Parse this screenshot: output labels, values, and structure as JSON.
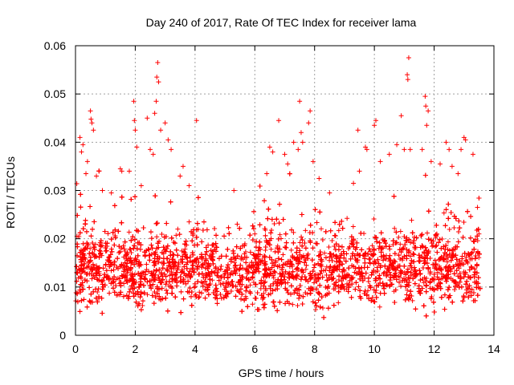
{
  "chart_data": {
    "type": "scatter",
    "title": "Day 240 of 2017, Rate Of TEC Index for receiver lama",
    "xlabel": "GPS time / hours",
    "ylabel": "ROTI / TECUs",
    "xlim": [
      0,
      14
    ],
    "ylim": [
      0,
      0.06
    ],
    "xticks": [
      "0",
      "2",
      "4",
      "6",
      "8",
      "10",
      "12",
      "14"
    ],
    "yticks": [
      "0",
      "0.01",
      "0.02",
      "0.03",
      "0.04",
      "0.05",
      "0.06"
    ],
    "grid": true,
    "marker": "plus",
    "color": "#ff0000",
    "highlight_points": [
      {
        "x": 0.05,
        "y": 0.0205
      },
      {
        "x": 0.15,
        "y": 0.041
      },
      {
        "x": 0.2,
        "y": 0.038
      },
      {
        "x": 0.25,
        "y": 0.0395
      },
      {
        "x": 0.35,
        "y": 0.0335
      },
      {
        "x": 0.4,
        "y": 0.036
      },
      {
        "x": 0.5,
        "y": 0.0465
      },
      {
        "x": 0.52,
        "y": 0.0448
      },
      {
        "x": 0.55,
        "y": 0.044
      },
      {
        "x": 0.6,
        "y": 0.0425
      },
      {
        "x": 0.7,
        "y": 0.033
      },
      {
        "x": 0.9,
        "y": 0.03
      },
      {
        "x": 1.2,
        "y": 0.0295
      },
      {
        "x": 1.5,
        "y": 0.0345
      },
      {
        "x": 1.55,
        "y": 0.034
      },
      {
        "x": 1.8,
        "y": 0.034
      },
      {
        "x": 1.95,
        "y": 0.0485
      },
      {
        "x": 1.97,
        "y": 0.0445
      },
      {
        "x": 2.0,
        "y": 0.0425
      },
      {
        "x": 2.05,
        "y": 0.039
      },
      {
        "x": 2.2,
        "y": 0.031
      },
      {
        "x": 2.4,
        "y": 0.045
      },
      {
        "x": 2.5,
        "y": 0.0385
      },
      {
        "x": 2.6,
        "y": 0.0375
      },
      {
        "x": 2.65,
        "y": 0.046
      },
      {
        "x": 2.7,
        "y": 0.0485
      },
      {
        "x": 2.72,
        "y": 0.0535
      },
      {
        "x": 2.75,
        "y": 0.0565
      },
      {
        "x": 2.78,
        "y": 0.0525
      },
      {
        "x": 2.85,
        "y": 0.0425
      },
      {
        "x": 3.0,
        "y": 0.044
      },
      {
        "x": 3.1,
        "y": 0.0405
      },
      {
        "x": 3.2,
        "y": 0.0385
      },
      {
        "x": 3.5,
        "y": 0.033
      },
      {
        "x": 3.6,
        "y": 0.035
      },
      {
        "x": 3.8,
        "y": 0.031
      },
      {
        "x": 4.05,
        "y": 0.0445
      },
      {
        "x": 5.3,
        "y": 0.03
      },
      {
        "x": 6.0,
        "y": 0.021
      },
      {
        "x": 6.4,
        "y": 0.0335
      },
      {
        "x": 6.5,
        "y": 0.039
      },
      {
        "x": 6.6,
        "y": 0.038
      },
      {
        "x": 6.8,
        "y": 0.0445
      },
      {
        "x": 7.0,
        "y": 0.0375
      },
      {
        "x": 7.1,
        "y": 0.0355
      },
      {
        "x": 7.3,
        "y": 0.04
      },
      {
        "x": 7.45,
        "y": 0.0385
      },
      {
        "x": 7.5,
        "y": 0.0485
      },
      {
        "x": 7.55,
        "y": 0.042
      },
      {
        "x": 7.6,
        "y": 0.04
      },
      {
        "x": 7.8,
        "y": 0.044
      },
      {
        "x": 7.85,
        "y": 0.0465
      },
      {
        "x": 7.95,
        "y": 0.036
      },
      {
        "x": 8.15,
        "y": 0.0325
      },
      {
        "x": 8.5,
        "y": 0.0295
      },
      {
        "x": 9.3,
        "y": 0.0315
      },
      {
        "x": 9.45,
        "y": 0.0425
      },
      {
        "x": 9.5,
        "y": 0.034
      },
      {
        "x": 9.7,
        "y": 0.039
      },
      {
        "x": 9.75,
        "y": 0.0385
      },
      {
        "x": 10.0,
        "y": 0.0435
      },
      {
        "x": 10.05,
        "y": 0.0445
      },
      {
        "x": 10.2,
        "y": 0.036
      },
      {
        "x": 10.5,
        "y": 0.0375
      },
      {
        "x": 10.75,
        "y": 0.0395
      },
      {
        "x": 10.9,
        "y": 0.0455
      },
      {
        "x": 11.0,
        "y": 0.0385
      },
      {
        "x": 11.1,
        "y": 0.054
      },
      {
        "x": 11.15,
        "y": 0.0575
      },
      {
        "x": 11.12,
        "y": 0.053
      },
      {
        "x": 11.2,
        "y": 0.0385
      },
      {
        "x": 11.6,
        "y": 0.0385
      },
      {
        "x": 11.7,
        "y": 0.0495
      },
      {
        "x": 11.72,
        "y": 0.0475
      },
      {
        "x": 11.75,
        "y": 0.0435
      },
      {
        "x": 11.8,
        "y": 0.0465
      },
      {
        "x": 11.9,
        "y": 0.036
      },
      {
        "x": 12.2,
        "y": 0.0355
      },
      {
        "x": 12.4,
        "y": 0.04
      },
      {
        "x": 12.5,
        "y": 0.0385
      },
      {
        "x": 12.6,
        "y": 0.035
      },
      {
        "x": 12.8,
        "y": 0.0335
      },
      {
        "x": 12.9,
        "y": 0.0385
      },
      {
        "x": 13.0,
        "y": 0.041
      },
      {
        "x": 13.05,
        "y": 0.0405
      },
      {
        "x": 13.3,
        "y": 0.0375
      },
      {
        "x": 13.45,
        "y": 0.0265
      },
      {
        "x": 13.5,
        "y": 0.021
      }
    ]
  }
}
